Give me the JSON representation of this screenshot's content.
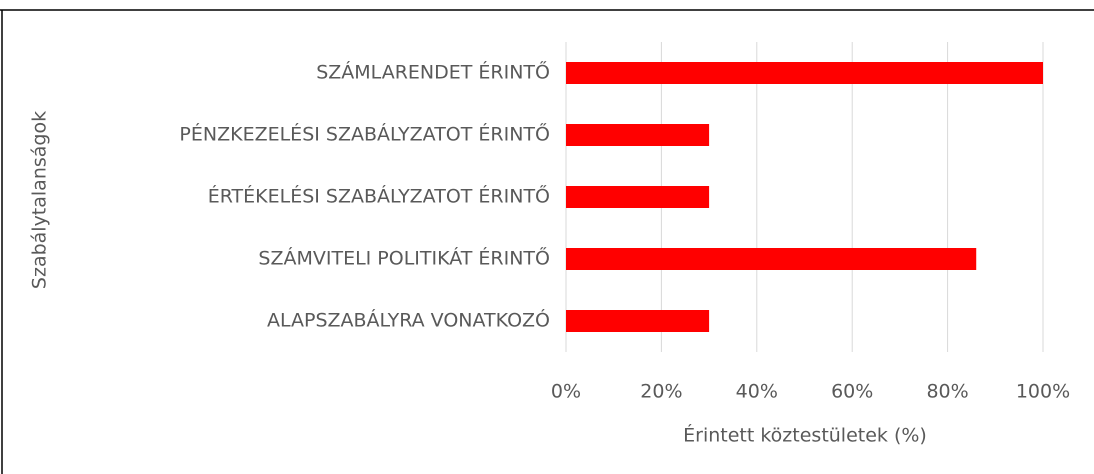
{
  "chart_data": {
    "type": "barh",
    "categories": [
      "SZÁMLARENDET ÉRINTŐ",
      "PÉNZKEZELÉSI SZABÁLYZATOT ÉRINTŐ",
      "ÉRTÉKELÉSI SZABÁLYZATOT ÉRINTŐ",
      "SZÁMVITELI POLITIKÁT ÉRINTŐ",
      "ALAPSZABÁLYRA VONATKOZÓ"
    ],
    "values": [
      100,
      30,
      30,
      86,
      30
    ],
    "color": "#ff0000",
    "xlabel": "Érintett köztestületek (%)",
    "ylabel": "Szabálytalanságok",
    "xlim": [
      0,
      100
    ],
    "xticks": [
      {
        "value": 0,
        "label": "0%"
      },
      {
        "value": 20,
        "label": "20%"
      },
      {
        "value": 40,
        "label": "40%"
      },
      {
        "value": 60,
        "label": "60%"
      },
      {
        "value": 80,
        "label": "80%"
      },
      {
        "value": 100,
        "label": "100%"
      }
    ],
    "grid": true
  }
}
